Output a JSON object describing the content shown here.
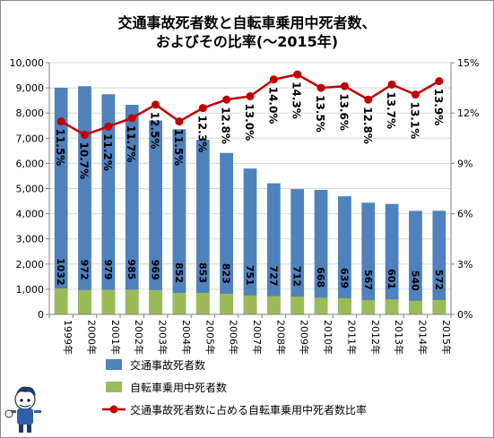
{
  "chart_data": {
    "type": "bar",
    "title_line1": "交通事故死者数と自転車乗用中死者数、",
    "title_line2": "およびその比率(～2015年)",
    "categories": [
      "1999年",
      "2000年",
      "2001年",
      "2002年",
      "2003年",
      "2004年",
      "2005年",
      "2006年",
      "2007年",
      "2008年",
      "2009年",
      "2010年",
      "2011年",
      "2012年",
      "2013年",
      "2014年",
      "2015年"
    ],
    "series": [
      {
        "name": "交通事故死者数",
        "axis": "left",
        "color": "#4f81bd",
        "values": [
          9006,
          9066,
          8747,
          8326,
          7702,
          7358,
          6937,
          6415,
          5796,
          5209,
          4979,
          4948,
          4691,
          4438,
          4388,
          4113,
          4117
        ]
      },
      {
        "name": "自転車乗用中死者数",
        "axis": "left",
        "color": "#9bbb59",
        "values": [
          1032,
          972,
          979,
          985,
          969,
          852,
          853,
          823,
          751,
          727,
          712,
          668,
          639,
          567,
          601,
          540,
          572
        ],
        "labels": [
          "1032",
          "972",
          "979",
          "985",
          "969",
          "852",
          "853",
          "823",
          "751",
          "727",
          "712",
          "668",
          "639",
          "567",
          "601",
          "540",
          "572"
        ]
      },
      {
        "name": "交通事故死者数に占める自転車乗用中死者数比率",
        "axis": "right",
        "type": "line",
        "color": "#c00000",
        "values": [
          11.5,
          10.7,
          11.2,
          11.7,
          12.5,
          11.5,
          12.3,
          12.8,
          13.0,
          14.0,
          14.3,
          13.5,
          13.6,
          12.8,
          13.7,
          13.1,
          13.9
        ],
        "labels": [
          "11.5%",
          "10.7%",
          "11.2%",
          "11.7%",
          "12.5%",
          "11.5%",
          "12.3%",
          "12.8%",
          "13.0%",
          "14.0%",
          "14.3%",
          "13.5%",
          "13.6%",
          "12.8%",
          "13.7%",
          "13.1%",
          "13.9%"
        ]
      }
    ],
    "y_left": {
      "min": 0,
      "max": 10000,
      "ticks": [
        0,
        1000,
        2000,
        3000,
        4000,
        5000,
        6000,
        7000,
        8000,
        9000,
        10000
      ],
      "tick_labels": [
        "0",
        "1,000",
        "2,000",
        "3,000",
        "4,000",
        "5,000",
        "6,000",
        "7,000",
        "8,000",
        "9,000",
        "10,000"
      ]
    },
    "y_right": {
      "min": 0,
      "max": 15,
      "ticks": [
        0,
        3,
        6,
        9,
        12,
        15
      ],
      "tick_labels": [
        "0%",
        "3%",
        "6%",
        "9%",
        "12%",
        "15%"
      ]
    },
    "grid": true,
    "legend": "bottom"
  }
}
